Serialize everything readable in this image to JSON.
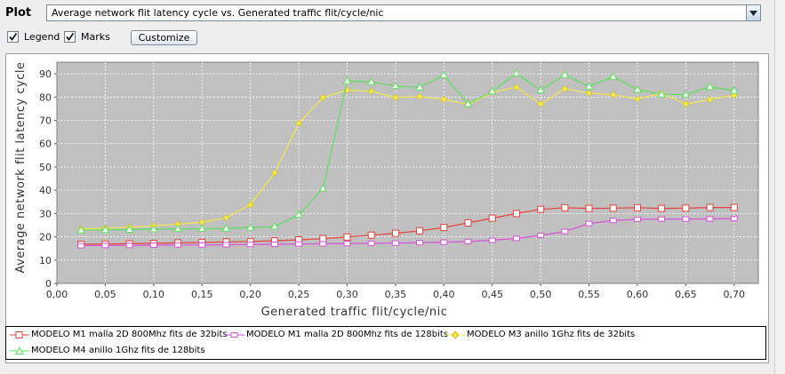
{
  "toolbar": {
    "plot_label": "Plot",
    "selected_plot": "Average network flit latency cycle vs. Generated traffic flit/cycle/nic",
    "legend_label": "Legend",
    "legend_checked": true,
    "marks_label": "Marks",
    "marks_checked": true,
    "customize_label": "Customize"
  },
  "chart_data": {
    "type": "line",
    "xlabel": "Generated traffic flit/cycle/nic",
    "ylabel": "Average network flit latency cycle",
    "xlim": [
      0.0,
      0.725
    ],
    "ylim": [
      0,
      95
    ],
    "x_ticks": [
      "0,00",
      "0,05",
      "0,10",
      "0,15",
      "0,20",
      "0,25",
      "0,30",
      "0,35",
      "0,40",
      "0,45",
      "0,50",
      "0,55",
      "0,60",
      "0,65",
      "0,70"
    ],
    "y_ticks": [
      "0",
      "10",
      "20",
      "30",
      "40",
      "50",
      "60",
      "70",
      "80",
      "90"
    ],
    "grid": true,
    "legend_placement": "bottom",
    "x": [
      0.025,
      0.05,
      0.075,
      0.1,
      0.125,
      0.15,
      0.175,
      0.2,
      0.225,
      0.25,
      0.275,
      0.3,
      0.325,
      0.35,
      0.375,
      0.4,
      0.425,
      0.45,
      0.475,
      0.5,
      0.525,
      0.55,
      0.575,
      0.6,
      0.625,
      0.65,
      0.675,
      0.7
    ],
    "series": [
      {
        "name": "MODELO M1 malla 2D 800Mhz fits de 32bits",
        "color": "#e8403a",
        "marker": "square",
        "values": [
          16.8,
          16.9,
          17.0,
          17.2,
          17.4,
          17.6,
          17.8,
          18.0,
          18.3,
          18.7,
          19.2,
          19.9,
          20.7,
          21.5,
          22.6,
          24.0,
          26.0,
          28.0,
          30.0,
          31.8,
          32.5,
          32.2,
          32.3,
          32.5,
          32.2,
          32.3,
          32.6,
          32.6
        ]
      },
      {
        "name": "MODELO M1 malla 2D 800Mhz fits de 128bits",
        "color": "#d84fd8",
        "marker": "square",
        "values": [
          16.2,
          16.3,
          16.3,
          16.4,
          16.5,
          16.5,
          16.6,
          16.7,
          16.8,
          16.9,
          17.0,
          17.1,
          17.2,
          17.3,
          17.5,
          17.7,
          18.0,
          18.5,
          19.3,
          20.6,
          22.3,
          25.7,
          27.0,
          27.5,
          27.6,
          27.6,
          27.7,
          27.8
        ]
      },
      {
        "name": "MODELO M3 anillo 1Ghz fits de 32bits",
        "color": "#f5e84a",
        "marker": "diamond",
        "values": [
          23.3,
          23.7,
          24.1,
          24.7,
          25.4,
          26.3,
          28.2,
          33.8,
          47.5,
          68.8,
          79.8,
          83.0,
          82.5,
          79.8,
          80.2,
          79.0,
          76.8,
          82.1,
          84.2,
          77.0,
          83.6,
          81.7,
          81.0,
          79.2,
          81.6,
          77.0,
          79.0,
          80.8
        ]
      },
      {
        "name": "MODELO M4 anillo 1Ghz fits de 128bits",
        "color": "#5ce05c",
        "marker": "triangle",
        "values": [
          22.8,
          23.0,
          23.1,
          23.3,
          23.4,
          23.5,
          23.6,
          24.0,
          24.4,
          29.5,
          40.8,
          87.0,
          86.5,
          84.8,
          84.2,
          89.4,
          77.1,
          82.5,
          90.2,
          83.0,
          89.6,
          84.6,
          88.8,
          83.2,
          81.2,
          81.1,
          84.4,
          82.8
        ]
      }
    ]
  }
}
